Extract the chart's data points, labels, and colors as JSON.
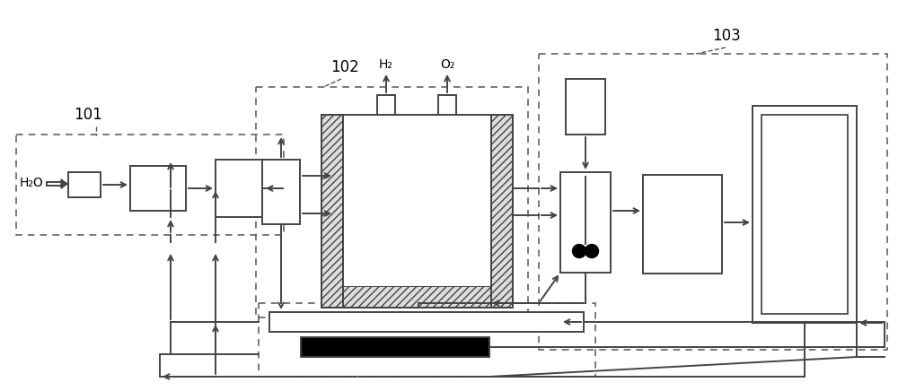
{
  "bg": "#ffffff",
  "lc": "#444444",
  "dc": "#555555",
  "figsize": [
    10.0,
    4.36
  ],
  "dpi": 100,
  "h2": "H₂",
  "o2": "O₂",
  "h2o": "H₂O",
  "lbl101": "101",
  "lbl102": "102",
  "lbl103": "103"
}
